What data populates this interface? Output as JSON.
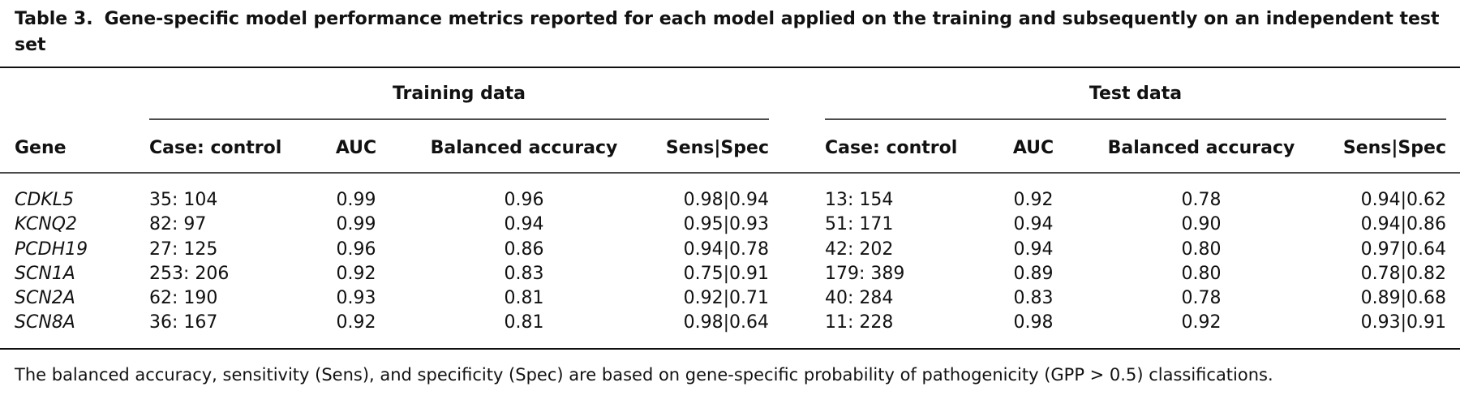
{
  "title": {
    "label": "Table 3.",
    "text": "Gene-specific model performance metrics reported for each model applied on the training and subsequently on an independent test set"
  },
  "table": {
    "groups": [
      "Training data",
      "Test data"
    ],
    "columns": [
      "Gene",
      "Case: control",
      "AUC",
      "Balanced accuracy",
      "Sens|Spec",
      "Case: control",
      "AUC",
      "Balanced accuracy",
      "Sens|Spec"
    ],
    "rows": [
      [
        "CDKL5",
        "35: 104",
        "0.99",
        "0.96",
        "0.98|0.94",
        "13: 154",
        "0.92",
        "0.78",
        "0.94|0.62"
      ],
      [
        "KCNQ2",
        "82: 97",
        "0.99",
        "0.94",
        "0.95|0.93",
        "51: 171",
        "0.94",
        "0.90",
        "0.94|0.86"
      ],
      [
        "PCDH19",
        "27: 125",
        "0.96",
        "0.86",
        "0.94|0.78",
        "42: 202",
        "0.94",
        "0.80",
        "0.97|0.64"
      ],
      [
        "SCN1A",
        "253: 206",
        "0.92",
        "0.83",
        "0.75|0.91",
        "179: 389",
        "0.89",
        "0.80",
        "0.78|0.82"
      ],
      [
        "SCN2A",
        "62: 190",
        "0.93",
        "0.81",
        "0.92|0.71",
        "40: 284",
        "0.83",
        "0.78",
        "0.89|0.68"
      ],
      [
        "SCN8A",
        "36: 167",
        "0.92",
        "0.81",
        "0.98|0.64",
        "11: 228",
        "0.98",
        "0.92",
        "0.93|0.91"
      ]
    ]
  },
  "footnote": "The balanced accuracy, sensitivity (Sens), and specificity (Spec) are based on gene-specific probability of pathogenicity (GPP > 0.5) classifications."
}
